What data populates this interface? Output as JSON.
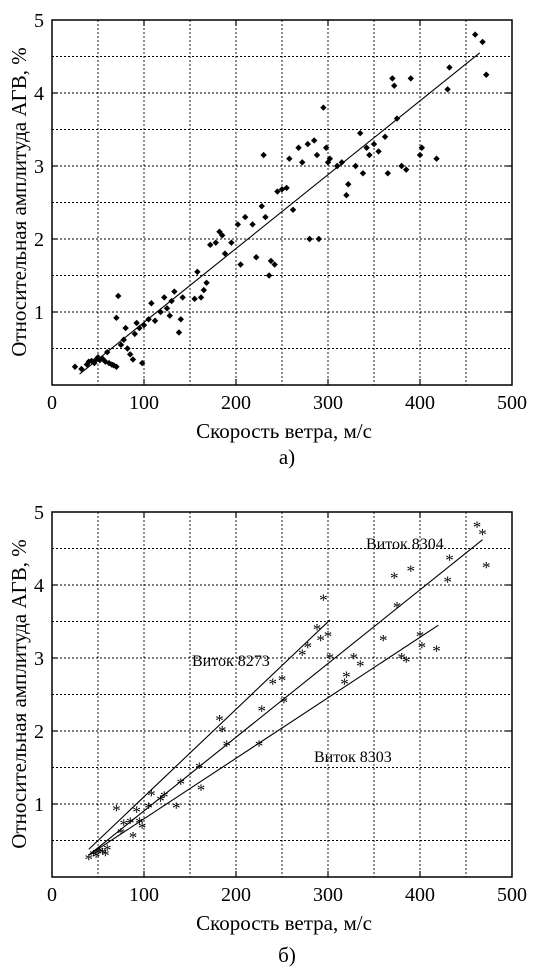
{
  "chart_data": [
    {
      "type": "scatter",
      "panel_label": "а)",
      "xlabel": "Скорость ветра, м/с",
      "ylabel": "Относительная амплитуда АГВ, %",
      "xlim": [
        0,
        500
      ],
      "ylim": [
        0,
        5
      ],
      "x_ticks": [
        "0",
        "100",
        "200",
        "300",
        "400",
        "500"
      ],
      "y_ticks": [
        "1",
        "2",
        "3",
        "4",
        "5"
      ],
      "grid": true,
      "marker": "diamond",
      "series": [
        {
          "points": [
            [
              25,
              0.25
            ],
            [
              32,
              0.22
            ],
            [
              38,
              0.28
            ],
            [
              40,
              0.32
            ],
            [
              43,
              0.33
            ],
            [
              46,
              0.3
            ],
            [
              48,
              0.35
            ],
            [
              50,
              0.38
            ],
            [
              52,
              0.34
            ],
            [
              55,
              0.36
            ],
            [
              58,
              0.32
            ],
            [
              60,
              0.45
            ],
            [
              62,
              0.3
            ],
            [
              65,
              0.28
            ],
            [
              67,
              0.27
            ],
            [
              70,
              0.25
            ],
            [
              70,
              0.92
            ],
            [
              72,
              1.22
            ],
            [
              75,
              0.55
            ],
            [
              78,
              0.62
            ],
            [
              80,
              0.78
            ],
            [
              82,
              0.5
            ],
            [
              85,
              0.42
            ],
            [
              88,
              0.35
            ],
            [
              90,
              0.7
            ],
            [
              92,
              0.85
            ],
            [
              95,
              0.78
            ],
            [
              98,
              0.3
            ],
            [
              100,
              0.82
            ],
            [
              105,
              0.9
            ],
            [
              108,
              1.12
            ],
            [
              112,
              0.88
            ],
            [
              118,
              1.0
            ],
            [
              122,
              1.2
            ],
            [
              125,
              1.05
            ],
            [
              128,
              0.95
            ],
            [
              130,
              1.15
            ],
            [
              133,
              1.28
            ],
            [
              138,
              0.72
            ],
            [
              140,
              0.9
            ],
            [
              142,
              1.2
            ],
            [
              155,
              1.18
            ],
            [
              158,
              1.55
            ],
            [
              162,
              1.2
            ],
            [
              165,
              1.3
            ],
            [
              168,
              1.4
            ],
            [
              172,
              1.92
            ],
            [
              178,
              1.95
            ],
            [
              182,
              2.1
            ],
            [
              185,
              2.05
            ],
            [
              188,
              1.8
            ],
            [
              195,
              1.95
            ],
            [
              202,
              2.2
            ],
            [
              205,
              1.65
            ],
            [
              210,
              2.3
            ],
            [
              218,
              2.2
            ],
            [
              222,
              1.75
            ],
            [
              228,
              2.45
            ],
            [
              230,
              3.15
            ],
            [
              232,
              2.3
            ],
            [
              236,
              1.5
            ],
            [
              238,
              1.7
            ],
            [
              242,
              1.65
            ],
            [
              245,
              2.65
            ],
            [
              250,
              2.68
            ],
            [
              255,
              2.7
            ],
            [
              258,
              3.1
            ],
            [
              262,
              2.4
            ],
            [
              268,
              3.25
            ],
            [
              272,
              3.05
            ],
            [
              278,
              3.3
            ],
            [
              280,
              2.0
            ],
            [
              285,
              3.35
            ],
            [
              288,
              3.15
            ],
            [
              290,
              2.0
            ],
            [
              295,
              3.8
            ],
            [
              298,
              3.25
            ],
            [
              300,
              3.05
            ],
            [
              302,
              3.1
            ],
            [
              310,
              3.0
            ],
            [
              315,
              3.05
            ],
            [
              320,
              2.6
            ],
            [
              322,
              2.75
            ],
            [
              330,
              3.0
            ],
            [
              335,
              3.45
            ],
            [
              338,
              2.9
            ],
            [
              342,
              3.25
            ],
            [
              345,
              3.15
            ],
            [
              350,
              3.3
            ],
            [
              355,
              3.2
            ],
            [
              362,
              3.4
            ],
            [
              365,
              2.9
            ],
            [
              370,
              4.2
            ],
            [
              372,
              4.1
            ],
            [
              375,
              3.65
            ],
            [
              380,
              3.0
            ],
            [
              385,
              2.95
            ],
            [
              390,
              4.2
            ],
            [
              400,
              3.15
            ],
            [
              402,
              3.25
            ],
            [
              418,
              3.1
            ],
            [
              430,
              4.05
            ],
            [
              432,
              4.35
            ],
            [
              460,
              4.8
            ],
            [
              468,
              4.7
            ],
            [
              472,
              4.25
            ]
          ]
        }
      ],
      "fit_lines": [
        {
          "x": [
            30,
            465
          ],
          "y": [
            0.15,
            4.55
          ]
        }
      ]
    },
    {
      "type": "scatter",
      "panel_label": "б)",
      "xlabel": "Скорость ветра, м/с",
      "ylabel": "Относительная амплитуда АГВ, %",
      "xlim": [
        0,
        500
      ],
      "ylim": [
        0,
        5
      ],
      "x_ticks": [
        "0",
        "100",
        "200",
        "300",
        "400",
        "500"
      ],
      "y_ticks": [
        "1",
        "2",
        "3",
        "4",
        "5"
      ],
      "grid": true,
      "marker": "asterisk",
      "series": [
        {
          "points": [
            [
              40,
              0.25
            ],
            [
              45,
              0.3
            ],
            [
              48,
              0.28
            ],
            [
              50,
              0.32
            ],
            [
              52,
              0.35
            ],
            [
              55,
              0.33
            ],
            [
              58,
              0.3
            ],
            [
              60,
              0.38
            ],
            [
              70,
              0.92
            ],
            [
              75,
              0.6
            ],
            [
              78,
              0.72
            ],
            [
              85,
              0.75
            ],
            [
              88,
              0.55
            ],
            [
              92,
              0.9
            ],
            [
              95,
              0.75
            ],
            [
              98,
              0.68
            ],
            [
              105,
              0.95
            ],
            [
              108,
              1.12
            ],
            [
              118,
              1.05
            ],
            [
              122,
              1.1
            ],
            [
              135,
              0.95
            ],
            [
              140,
              1.28
            ],
            [
              160,
              1.5
            ],
            [
              162,
              1.2
            ],
            [
              182,
              2.15
            ],
            [
              185,
              2.0
            ],
            [
              190,
              1.8
            ],
            [
              225,
              1.8
            ],
            [
              228,
              2.28
            ],
            [
              240,
              2.65
            ],
            [
              250,
              2.7
            ],
            [
              252,
              2.4
            ],
            [
              272,
              3.05
            ],
            [
              278,
              3.15
            ],
            [
              288,
              3.4
            ],
            [
              292,
              3.25
            ],
            [
              295,
              3.8
            ],
            [
              300,
              3.3
            ],
            [
              302,
              3.0
            ],
            [
              318,
              2.65
            ],
            [
              320,
              2.75
            ],
            [
              328,
              3.0
            ],
            [
              335,
              2.9
            ],
            [
              360,
              3.25
            ],
            [
              372,
              4.1
            ],
            [
              375,
              3.7
            ],
            [
              380,
              3.0
            ],
            [
              385,
              2.95
            ],
            [
              390,
              4.2
            ],
            [
              400,
              3.3
            ],
            [
              402,
              3.15
            ],
            [
              418,
              3.1
            ],
            [
              430,
              4.05
            ],
            [
              432,
              4.35
            ],
            [
              462,
              4.8
            ],
            [
              468,
              4.7
            ],
            [
              472,
              4.25
            ]
          ]
        }
      ],
      "fit_lines": [
        {
          "name": "Виток 8304",
          "x": [
            40,
            468
          ],
          "y": [
            0.3,
            4.62
          ]
        },
        {
          "name": "Виток 8273",
          "x": [
            40,
            302
          ],
          "y": [
            0.38,
            3.52
          ]
        },
        {
          "name": "Виток 8303",
          "x": [
            40,
            420
          ],
          "y": [
            0.3,
            3.45
          ]
        }
      ],
      "annotations": [
        "Виток 8304",
        "Виток 8273",
        "Виток 8303"
      ]
    }
  ]
}
